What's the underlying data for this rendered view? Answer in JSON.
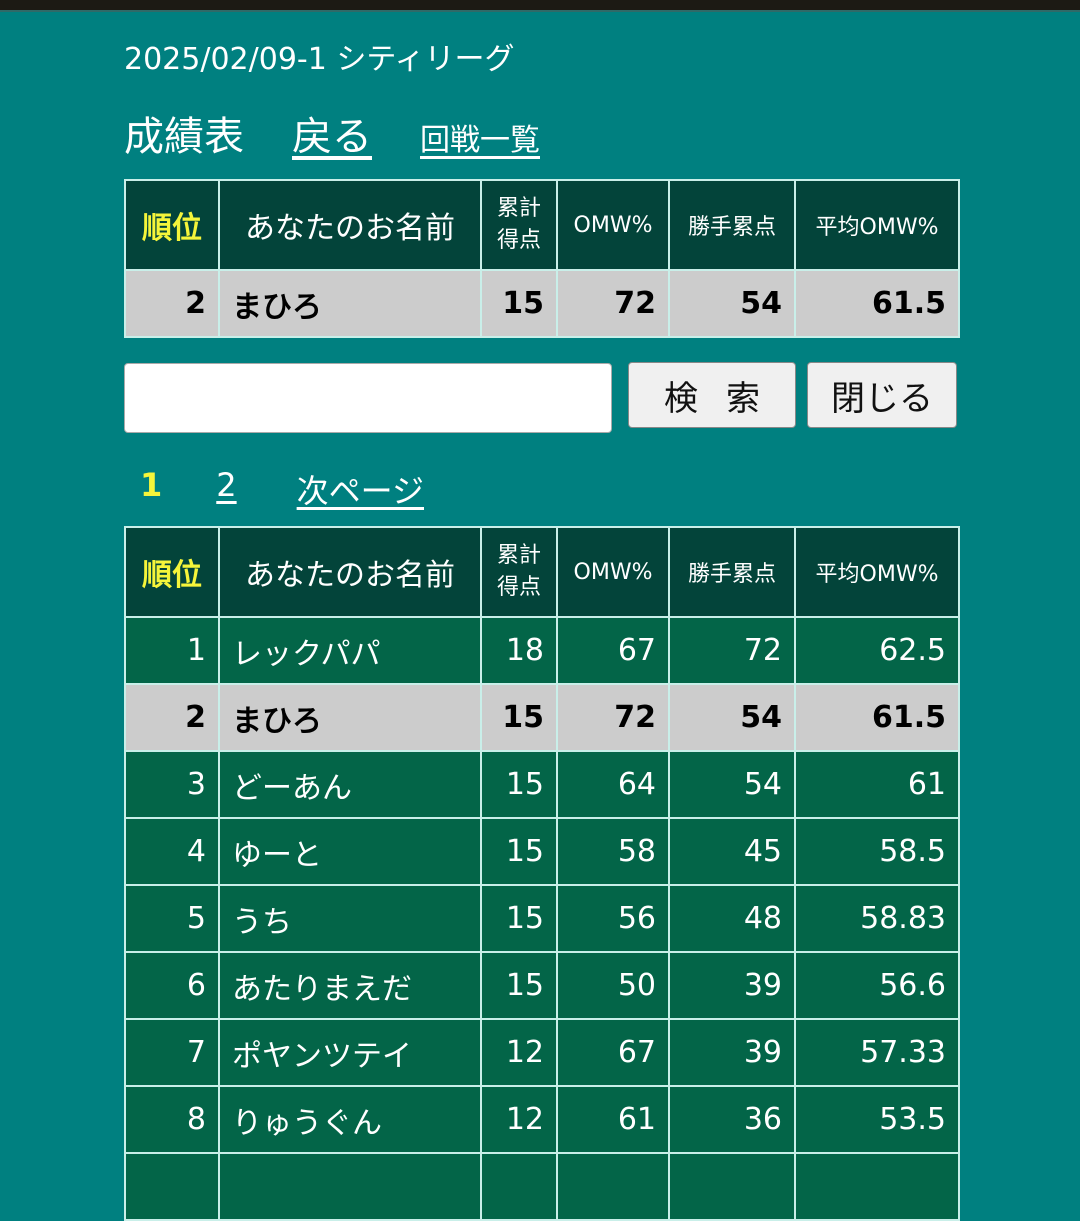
{
  "header": {
    "title": "2025/02/09-1 シティリーグ",
    "page_heading": "成績表",
    "back_link": "戻る",
    "rounds_link": "回戦一覧"
  },
  "columns": {
    "rank": "順位",
    "name": "あなたのお名前",
    "points_line1": "累計",
    "points_line2": "得点",
    "omw": "OMW%",
    "katte": "勝手累点",
    "avg_omw": "平均OMW%"
  },
  "my_result": {
    "rank": "2",
    "name": "まひろ",
    "points": "15",
    "omw": "72",
    "katte": "54",
    "avg_omw": "61.5"
  },
  "search": {
    "value": "",
    "search_label": "検索",
    "close_label": "閉じる"
  },
  "pagination": {
    "current": "1",
    "page2": "2",
    "next": "次ページ"
  },
  "colors": {
    "background": "#008080",
    "header_bg": "#03443a",
    "row_bg": "#036548",
    "highlight_bg": "#cccccc",
    "rank_header": "#f5f53a"
  },
  "rows": [
    {
      "rank": "1",
      "name": "レックパパ",
      "points": "18",
      "omw": "67",
      "katte": "72",
      "avg_omw": "62.5"
    },
    {
      "rank": "2",
      "name": "まひろ",
      "points": "15",
      "omw": "72",
      "katte": "54",
      "avg_omw": "61.5",
      "me": true
    },
    {
      "rank": "3",
      "name": "どーあん",
      "points": "15",
      "omw": "64",
      "katte": "54",
      "avg_omw": "61"
    },
    {
      "rank": "4",
      "name": "ゆーと",
      "points": "15",
      "omw": "58",
      "katte": "45",
      "avg_omw": "58.5"
    },
    {
      "rank": "5",
      "name": "うち",
      "points": "15",
      "omw": "56",
      "katte": "48",
      "avg_omw": "58.83"
    },
    {
      "rank": "6",
      "name": "あたりまえだ",
      "points": "15",
      "omw": "50",
      "katte": "39",
      "avg_omw": "56.6"
    },
    {
      "rank": "7",
      "name": "ポヤンツテイ",
      "points": "12",
      "omw": "67",
      "katte": "39",
      "avg_omw": "57.33"
    },
    {
      "rank": "8",
      "name": "りゅうぐん",
      "points": "12",
      "omw": "61",
      "katte": "36",
      "avg_omw": "53.5"
    }
  ]
}
